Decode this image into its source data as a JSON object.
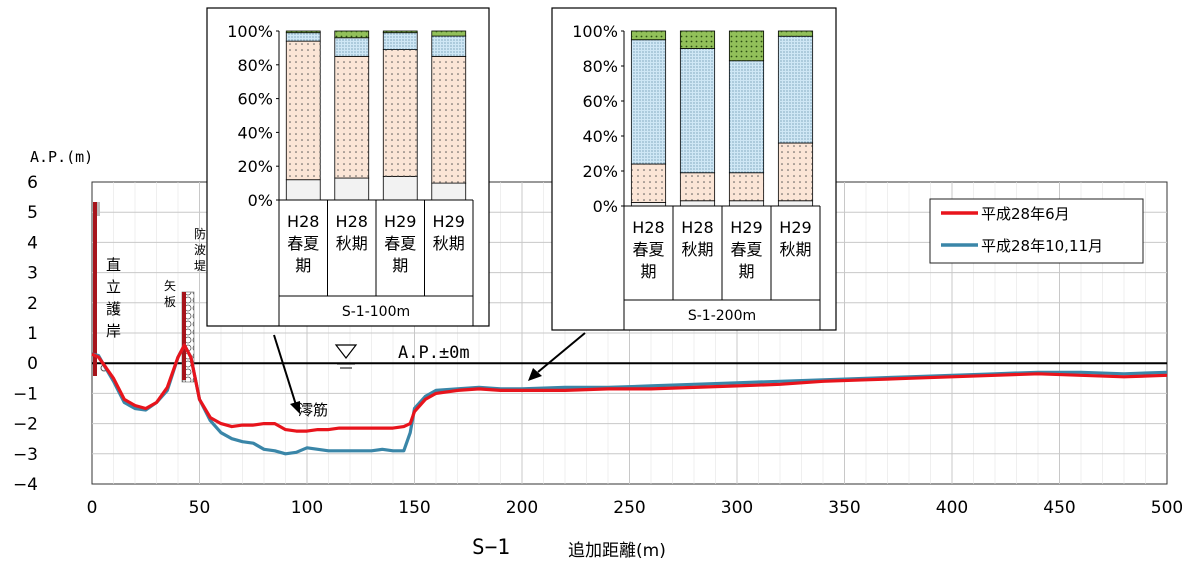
{
  "main_chart": {
    "y_unit_label": "A.P.(m)",
    "x_axis_title": "追加距離(m)",
    "section_label": "S−1",
    "water_level_label": "A.P.±0m",
    "channel_label": "澪筋",
    "x_ticks": [
      "0",
      "50",
      "100",
      "150",
      "200",
      "250",
      "300",
      "350",
      "400",
      "450",
      "500"
    ],
    "y_ticks": [
      "6",
      "5",
      "4",
      "3",
      "2",
      "1",
      "0",
      "−1",
      "−2",
      "−3",
      "−4"
    ],
    "structure_labels": {
      "seawall": [
        "直",
        "立",
        "護",
        "岸"
      ],
      "breakwater": [
        "防",
        "波",
        "堤"
      ],
      "sheet_pile": [
        "矢",
        "板"
      ]
    },
    "legend": {
      "june": "平成28年6月",
      "octnov": "平成28年10,11月"
    },
    "colors": {
      "june": "#e8141c",
      "octnov": "#3a86a8"
    }
  },
  "chart_data": [
    {
      "type": "line",
      "xlabel": "追加距離(m)",
      "ylabel": "A.P.(m)",
      "xlim": [
        0,
        500
      ],
      "ylim": [
        -4,
        6
      ],
      "series": [
        {
          "name": "平成28年6月",
          "x": [
            0,
            3,
            5,
            10,
            15,
            20,
            25,
            30,
            35,
            40,
            43,
            46,
            50,
            55,
            60,
            65,
            70,
            75,
            80,
            85,
            90,
            95,
            100,
            105,
            110,
            115,
            120,
            125,
            130,
            135,
            140,
            145,
            148,
            150,
            155,
            160,
            170,
            180,
            190,
            200,
            220,
            240,
            260,
            280,
            300,
            320,
            340,
            360,
            380,
            400,
            420,
            440,
            460,
            480,
            500
          ],
          "y": [
            0.3,
            0.2,
            0.0,
            -0.5,
            -1.2,
            -1.4,
            -1.5,
            -1.3,
            -0.8,
            0.2,
            0.6,
            0.2,
            -1.2,
            -1.8,
            -2.0,
            -2.1,
            -2.05,
            -2.05,
            -2.0,
            -2.0,
            -2.2,
            -2.25,
            -2.25,
            -2.2,
            -2.2,
            -2.15,
            -2.15,
            -2.15,
            -2.15,
            -2.15,
            -2.15,
            -2.1,
            -2.0,
            -1.6,
            -1.2,
            -1.0,
            -0.9,
            -0.85,
            -0.9,
            -0.9,
            -0.9,
            -0.85,
            -0.85,
            -0.8,
            -0.75,
            -0.7,
            -0.6,
            -0.55,
            -0.5,
            -0.45,
            -0.4,
            -0.35,
            -0.4,
            -0.45,
            -0.4
          ]
        },
        {
          "name": "平成28年10,11月",
          "x": [
            0,
            3,
            5,
            10,
            15,
            20,
            25,
            30,
            35,
            40,
            43,
            46,
            50,
            55,
            60,
            65,
            70,
            75,
            80,
            85,
            90,
            95,
            100,
            105,
            110,
            115,
            120,
            125,
            130,
            135,
            140,
            145,
            148,
            150,
            155,
            160,
            170,
            180,
            190,
            200,
            220,
            240,
            260,
            280,
            300,
            320,
            340,
            360,
            380,
            400,
            420,
            440,
            460,
            480,
            500
          ],
          "y": [
            0.3,
            0.25,
            0.0,
            -0.6,
            -1.3,
            -1.5,
            -1.55,
            -1.3,
            -0.9,
            0.2,
            0.6,
            0.2,
            -1.2,
            -1.9,
            -2.3,
            -2.5,
            -2.6,
            -2.65,
            -2.85,
            -2.9,
            -3.0,
            -2.95,
            -2.8,
            -2.85,
            -2.9,
            -2.9,
            -2.9,
            -2.9,
            -2.9,
            -2.85,
            -2.9,
            -2.9,
            -2.3,
            -1.5,
            -1.1,
            -0.9,
            -0.85,
            -0.8,
            -0.85,
            -0.85,
            -0.8,
            -0.8,
            -0.75,
            -0.7,
            -0.65,
            -0.6,
            -0.55,
            -0.5,
            -0.45,
            -0.4,
            -0.35,
            -0.3,
            -0.3,
            -0.35,
            -0.3
          ]
        }
      ]
    },
    {
      "type": "bar",
      "stacked": true,
      "ylim": [
        0,
        100
      ],
      "group_label": "S-1-100m",
      "categories": [
        [
          "H28",
          "春夏",
          "期"
        ],
        [
          "H28",
          "秋期"
        ],
        [
          "H29",
          "春夏",
          "期"
        ],
        [
          "H29",
          "秋期"
        ]
      ],
      "yticks": [
        "100%",
        "80%",
        "60%",
        "40%",
        "20%",
        "0%"
      ],
      "series": [
        {
          "color": "#f2f2f2",
          "values": [
            12,
            13,
            14,
            10
          ]
        },
        {
          "color": "#fbe5d6",
          "values": [
            82,
            72,
            75,
            75
          ]
        },
        {
          "color": "#cfe7f5",
          "values": [
            5,
            11,
            10,
            12
          ]
        },
        {
          "color": "#92c05a",
          "values": [
            1,
            4,
            1,
            3
          ]
        }
      ]
    },
    {
      "type": "bar",
      "stacked": true,
      "ylim": [
        0,
        100
      ],
      "group_label": "S-1-200m",
      "categories": [
        [
          "H28",
          "春夏",
          "期"
        ],
        [
          "H28",
          "秋期"
        ],
        [
          "H29",
          "春夏",
          "期"
        ],
        [
          "H29",
          "秋期"
        ]
      ],
      "yticks": [
        "100%",
        "80%",
        "60%",
        "40%",
        "20%",
        "0%"
      ],
      "series": [
        {
          "color": "#f2f2f2",
          "values": [
            2,
            3,
            3,
            3
          ]
        },
        {
          "color": "#fbe5d6",
          "values": [
            22,
            16,
            16,
            33
          ]
        },
        {
          "color": "#cfe7f5",
          "values": [
            71,
            71,
            64,
            61
          ]
        },
        {
          "color": "#92c05a",
          "values": [
            5,
            10,
            17,
            3
          ]
        }
      ]
    }
  ]
}
